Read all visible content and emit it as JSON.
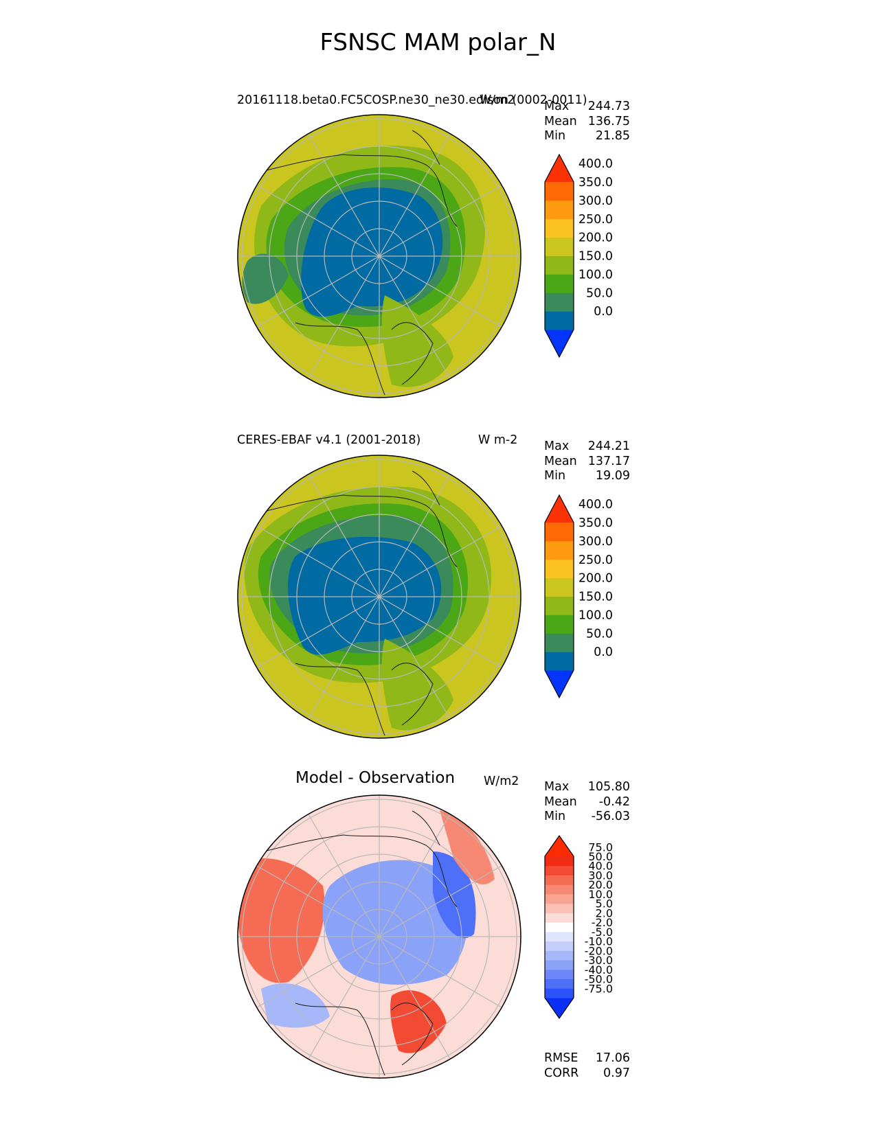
{
  "figure": {
    "title": "FSNSC MAM polar_N"
  },
  "panels": [
    {
      "id": "test",
      "left_title": "20161118.beta0.FC5COSP.ne30_ne30.edison (0002-0011)",
      "units": "W/m2",
      "stats": [
        {
          "label": "Max",
          "value": "244.73"
        },
        {
          "label": "Mean",
          "value": "136.75"
        },
        {
          "label": "Min",
          "value": "21.85"
        }
      ],
      "colorbar": {
        "ticks": [
          "400.0",
          "350.0",
          "300.0",
          "250.0",
          "200.0",
          "150.0",
          "100.0",
          "50.0",
          "0.0"
        ],
        "colors": [
          "#0335ff",
          "#006aa3",
          "#3a8a5c",
          "#4ba715",
          "#8fb818",
          "#cac51f",
          "#fbc221",
          "#fe9a0f",
          "#fd6a05",
          "#fd3204"
        ]
      }
    },
    {
      "id": "reference",
      "left_title": "CERES-EBAF v4.1 (2001-2018)",
      "units": "W m-2",
      "stats": [
        {
          "label": "Max",
          "value": "244.21"
        },
        {
          "label": "Mean",
          "value": "137.17"
        },
        {
          "label": "Min",
          "value": "19.09"
        }
      ],
      "colorbar": {
        "ticks": [
          "400.0",
          "350.0",
          "300.0",
          "250.0",
          "200.0",
          "150.0",
          "100.0",
          "50.0",
          "0.0"
        ],
        "colors": [
          "#0335ff",
          "#006aa3",
          "#3a8a5c",
          "#4ba715",
          "#8fb818",
          "#cac51f",
          "#fbc221",
          "#fe9a0f",
          "#fd6a05",
          "#fd3204"
        ]
      }
    },
    {
      "id": "difference",
      "center_title": "Model - Observation",
      "units": "W/m2",
      "stats": [
        {
          "label": "Max",
          "value": "105.80"
        },
        {
          "label": "Mean",
          "value": "-0.42"
        },
        {
          "label": "Min",
          "value": "-56.03"
        }
      ],
      "extra_stats": [
        {
          "label": "RMSE",
          "value": "17.06"
        },
        {
          "label": "CORR",
          "value": "0.97"
        }
      ],
      "colorbar": {
        "ticks": [
          "75.0",
          "50.0",
          "40.0",
          "30.0",
          "20.0",
          "10.0",
          "5.0",
          "2.0",
          "-2.0",
          "-5.0",
          "-10.0",
          "-20.0",
          "-30.0",
          "-40.0",
          "-50.0",
          "-75.0"
        ],
        "colors": [
          "#0a30f8",
          "#2c52f9",
          "#4e70f9",
          "#6d89f9",
          "#8ba2f9",
          "#a7b8fa",
          "#c3cefb",
          "#dfe5fc",
          "#ffffff",
          "#fcdcd6",
          "#fbc0b4",
          "#f9a493",
          "#f78873",
          "#f56b53",
          "#f34b33",
          "#f12b14",
          "#fb2c04"
        ]
      }
    }
  ],
  "colors": {
    "land_outline": "#1a1a1a",
    "grid": "#b8b8b8",
    "test_field": [
      "#cac51f",
      "#8fb818",
      "#4ba715",
      "#3a8a5c",
      "#006aa3"
    ],
    "diff_field": [
      "#f34b33",
      "#fbc0b4",
      "#ffffff",
      "#a7b8fa",
      "#4e70f9"
    ]
  }
}
